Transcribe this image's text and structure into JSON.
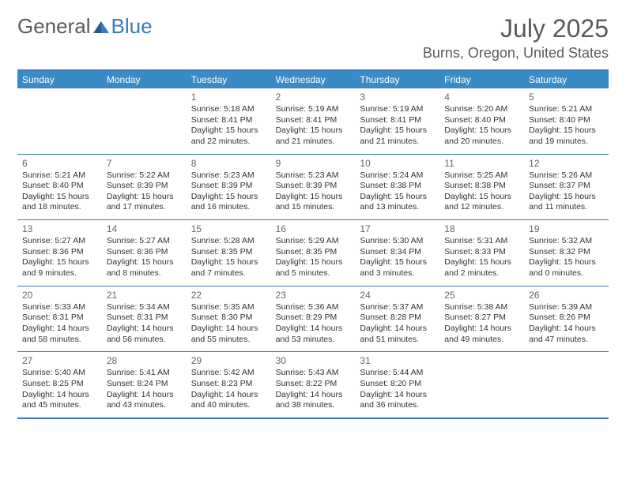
{
  "logo": {
    "part1": "General",
    "part2": "Blue"
  },
  "header": {
    "month_title": "July 2025",
    "location": "Burns, Oregon, United States"
  },
  "colors": {
    "accent": "#3a7abd",
    "header_bg": "#3a8ac6",
    "header_text": "#ffffff",
    "day_number": "#666666",
    "body_text": "#333333",
    "logo_gray": "#5a5a5a",
    "logo_blue": "#3a7abd"
  },
  "weekdays": [
    "Sunday",
    "Monday",
    "Tuesday",
    "Wednesday",
    "Thursday",
    "Friday",
    "Saturday"
  ],
  "weeks": [
    [
      null,
      null,
      {
        "n": "1",
        "sr": "5:18 AM",
        "ss": "8:41 PM",
        "dl": "15 hours and 22 minutes."
      },
      {
        "n": "2",
        "sr": "5:19 AM",
        "ss": "8:41 PM",
        "dl": "15 hours and 21 minutes."
      },
      {
        "n": "3",
        "sr": "5:19 AM",
        "ss": "8:41 PM",
        "dl": "15 hours and 21 minutes."
      },
      {
        "n": "4",
        "sr": "5:20 AM",
        "ss": "8:40 PM",
        "dl": "15 hours and 20 minutes."
      },
      {
        "n": "5",
        "sr": "5:21 AM",
        "ss": "8:40 PM",
        "dl": "15 hours and 19 minutes."
      }
    ],
    [
      {
        "n": "6",
        "sr": "5:21 AM",
        "ss": "8:40 PM",
        "dl": "15 hours and 18 minutes."
      },
      {
        "n": "7",
        "sr": "5:22 AM",
        "ss": "8:39 PM",
        "dl": "15 hours and 17 minutes."
      },
      {
        "n": "8",
        "sr": "5:23 AM",
        "ss": "8:39 PM",
        "dl": "15 hours and 16 minutes."
      },
      {
        "n": "9",
        "sr": "5:23 AM",
        "ss": "8:39 PM",
        "dl": "15 hours and 15 minutes."
      },
      {
        "n": "10",
        "sr": "5:24 AM",
        "ss": "8:38 PM",
        "dl": "15 hours and 13 minutes."
      },
      {
        "n": "11",
        "sr": "5:25 AM",
        "ss": "8:38 PM",
        "dl": "15 hours and 12 minutes."
      },
      {
        "n": "12",
        "sr": "5:26 AM",
        "ss": "8:37 PM",
        "dl": "15 hours and 11 minutes."
      }
    ],
    [
      {
        "n": "13",
        "sr": "5:27 AM",
        "ss": "8:36 PM",
        "dl": "15 hours and 9 minutes."
      },
      {
        "n": "14",
        "sr": "5:27 AM",
        "ss": "8:36 PM",
        "dl": "15 hours and 8 minutes."
      },
      {
        "n": "15",
        "sr": "5:28 AM",
        "ss": "8:35 PM",
        "dl": "15 hours and 7 minutes."
      },
      {
        "n": "16",
        "sr": "5:29 AM",
        "ss": "8:35 PM",
        "dl": "15 hours and 5 minutes."
      },
      {
        "n": "17",
        "sr": "5:30 AM",
        "ss": "8:34 PM",
        "dl": "15 hours and 3 minutes."
      },
      {
        "n": "18",
        "sr": "5:31 AM",
        "ss": "8:33 PM",
        "dl": "15 hours and 2 minutes."
      },
      {
        "n": "19",
        "sr": "5:32 AM",
        "ss": "8:32 PM",
        "dl": "15 hours and 0 minutes."
      }
    ],
    [
      {
        "n": "20",
        "sr": "5:33 AM",
        "ss": "8:31 PM",
        "dl": "14 hours and 58 minutes."
      },
      {
        "n": "21",
        "sr": "5:34 AM",
        "ss": "8:31 PM",
        "dl": "14 hours and 56 minutes."
      },
      {
        "n": "22",
        "sr": "5:35 AM",
        "ss": "8:30 PM",
        "dl": "14 hours and 55 minutes."
      },
      {
        "n": "23",
        "sr": "5:36 AM",
        "ss": "8:29 PM",
        "dl": "14 hours and 53 minutes."
      },
      {
        "n": "24",
        "sr": "5:37 AM",
        "ss": "8:28 PM",
        "dl": "14 hours and 51 minutes."
      },
      {
        "n": "25",
        "sr": "5:38 AM",
        "ss": "8:27 PM",
        "dl": "14 hours and 49 minutes."
      },
      {
        "n": "26",
        "sr": "5:39 AM",
        "ss": "8:26 PM",
        "dl": "14 hours and 47 minutes."
      }
    ],
    [
      {
        "n": "27",
        "sr": "5:40 AM",
        "ss": "8:25 PM",
        "dl": "14 hours and 45 minutes."
      },
      {
        "n": "28",
        "sr": "5:41 AM",
        "ss": "8:24 PM",
        "dl": "14 hours and 43 minutes."
      },
      {
        "n": "29",
        "sr": "5:42 AM",
        "ss": "8:23 PM",
        "dl": "14 hours and 40 minutes."
      },
      {
        "n": "30",
        "sr": "5:43 AM",
        "ss": "8:22 PM",
        "dl": "14 hours and 38 minutes."
      },
      {
        "n": "31",
        "sr": "5:44 AM",
        "ss": "8:20 PM",
        "dl": "14 hours and 36 minutes."
      },
      null,
      null
    ]
  ],
  "labels": {
    "sunrise": "Sunrise: ",
    "sunset": "Sunset: ",
    "daylight": "Daylight: "
  }
}
